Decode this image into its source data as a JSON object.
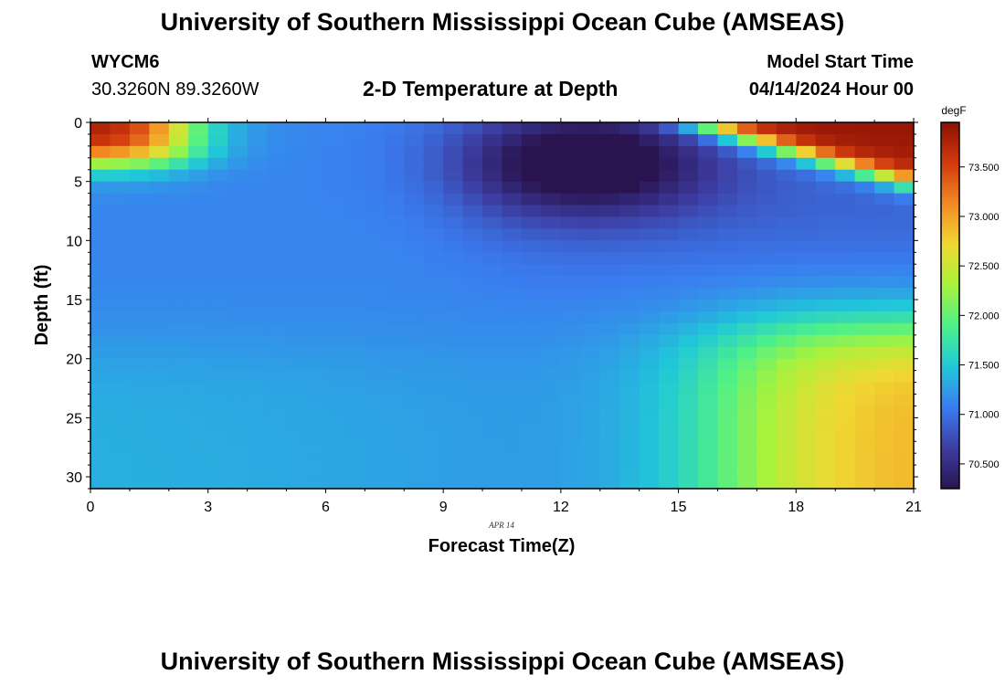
{
  "header": {
    "title": "University of Southern Mississippi Ocean Cube (AMSEAS)",
    "station": "WYCM6",
    "coords": "30.3260N  89.3260W",
    "subtitle": "2-D Temperature at Depth",
    "model_start_label": "Model Start Time",
    "model_start_value": "04/14/2024 Hour 00"
  },
  "footer": {
    "title": "University of Southern Mississippi Ocean Cube (AMSEAS)"
  },
  "chart_data": {
    "type": "heatmap",
    "title": "2-D Temperature at Depth",
    "xlabel": "Forecast Time(Z)",
    "ylabel": "Depth (ft)",
    "date_label": "APR 14",
    "xlim": [
      0,
      21
    ],
    "ylim": [
      31,
      0
    ],
    "x_ticks": [
      0,
      3,
      6,
      9,
      12,
      15,
      18,
      21
    ],
    "y_ticks": [
      0,
      5,
      10,
      15,
      20,
      25,
      30
    ],
    "colorbar": {
      "unit": "degF",
      "range": [
        70.25,
        73.95
      ],
      "ticks": [
        70.5,
        71.0,
        71.5,
        72.0,
        72.5,
        73.0,
        73.5
      ],
      "tick_labels": [
        "70.500",
        "71.000",
        "71.500",
        "72.000",
        "72.500",
        "73.000",
        "73.500"
      ]
    },
    "model": "Temperature field approximated from image: warm surface layer early and late, cold core near 3 ft around hour 12-13, warm deep water after hour 15",
    "colors": {
      "c0": "#2a1450",
      "c1": "#3d3da2",
      "c2": "#3a7cf0",
      "c3": "#20c8d8",
      "c4": "#4ef08a",
      "c5": "#a8f23c",
      "c6": "#f0d832",
      "c7": "#f28a24",
      "c8": "#d23a0e",
      "c9": "#8c1004"
    }
  }
}
